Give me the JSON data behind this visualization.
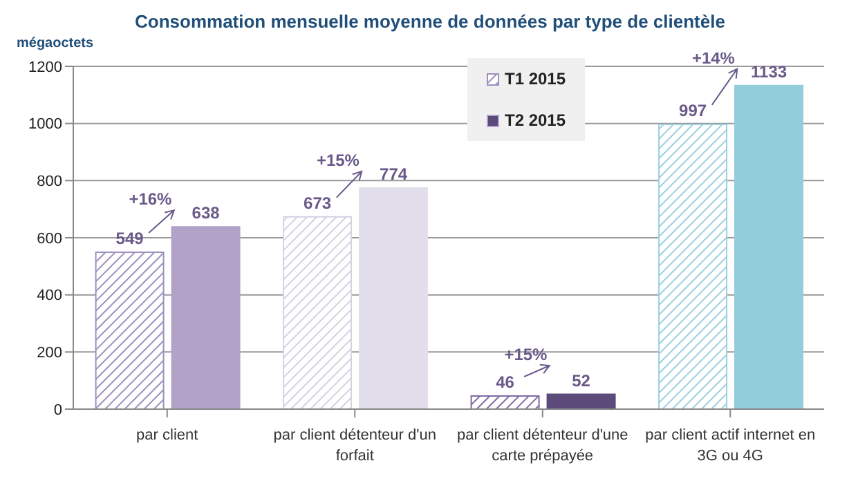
{
  "chart_data": {
    "type": "bar",
    "title": "Consommation mensuelle moyenne de données par type de clientèle",
    "ylabel": "mégaoctets",
    "categories": [
      "par client",
      "par client détenteur d'un forfait",
      "par client détenteur d'une carte prépayée",
      "par client actif internet en 3G ou 4G"
    ],
    "series": [
      {
        "name": "T1 2015",
        "color": "#9d8fbf",
        "colors": [
          "#9d8fbf",
          "#d6d0e2",
          "#7d6ca3",
          "#9ccfe0"
        ],
        "values": [
          549,
          673,
          46,
          997
        ]
      },
      {
        "name": "T2 2015",
        "color": "#5c4a7a",
        "colors": [
          "#b1a2c8",
          "#e3deeb",
          "#5c4a7a",
          "#92cddc"
        ],
        "values": [
          638,
          774,
          52,
          1133
        ]
      }
    ],
    "ylim": [
      0,
      1200
    ],
    "yticks": [
      0,
      200,
      400,
      600,
      800,
      1000,
      1200
    ],
    "grid": "y",
    "legend": "top",
    "data_labels": true,
    "annotations": [
      {
        "text": "+16%",
        "x": "par client",
        "y": 638
      },
      {
        "text": "+15%",
        "x": "par client détenteur d'un forfait",
        "y": 774
      },
      {
        "text": "+15%",
        "x": "par client détenteur d'une carte prépayée",
        "y": 52
      },
      {
        "text": "+14%",
        "x": "par client actif internet en 3G ou 4G",
        "y": 1133
      }
    ]
  }
}
